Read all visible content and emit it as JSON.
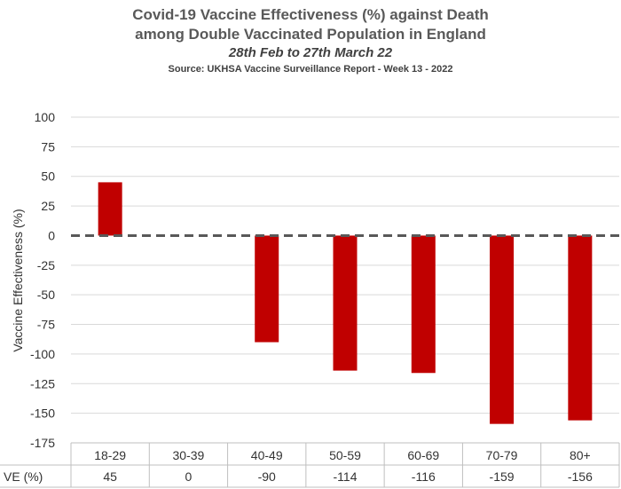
{
  "chart_data": {
    "type": "bar",
    "title_line1": "Covid-19 Vaccine Effectiveness (%) against Death",
    "title_line2": "among Double Vaccinated Population in England",
    "subtitle": "28th Feb to 27th March 22",
    "source": "Source: UKHSA Vaccine Surveillance Report - Week 13 - 2022",
    "ylabel": "Vaccine Effectiveness (%)",
    "xlabel": "",
    "ylim": [
      -175,
      100
    ],
    "yticks": [
      100,
      75,
      50,
      25,
      0,
      -25,
      -50,
      -75,
      -100,
      -125,
      -150,
      -175
    ],
    "categories": [
      "18-29",
      "30-39",
      "40-49",
      "50-59",
      "60-69",
      "70-79",
      "80+"
    ],
    "values": [
      45,
      0,
      -90,
      -114,
      -116,
      -159,
      -156
    ],
    "table_row_label": "VE (%)",
    "bar_color": "#c00000",
    "zero_line": "dashed"
  }
}
